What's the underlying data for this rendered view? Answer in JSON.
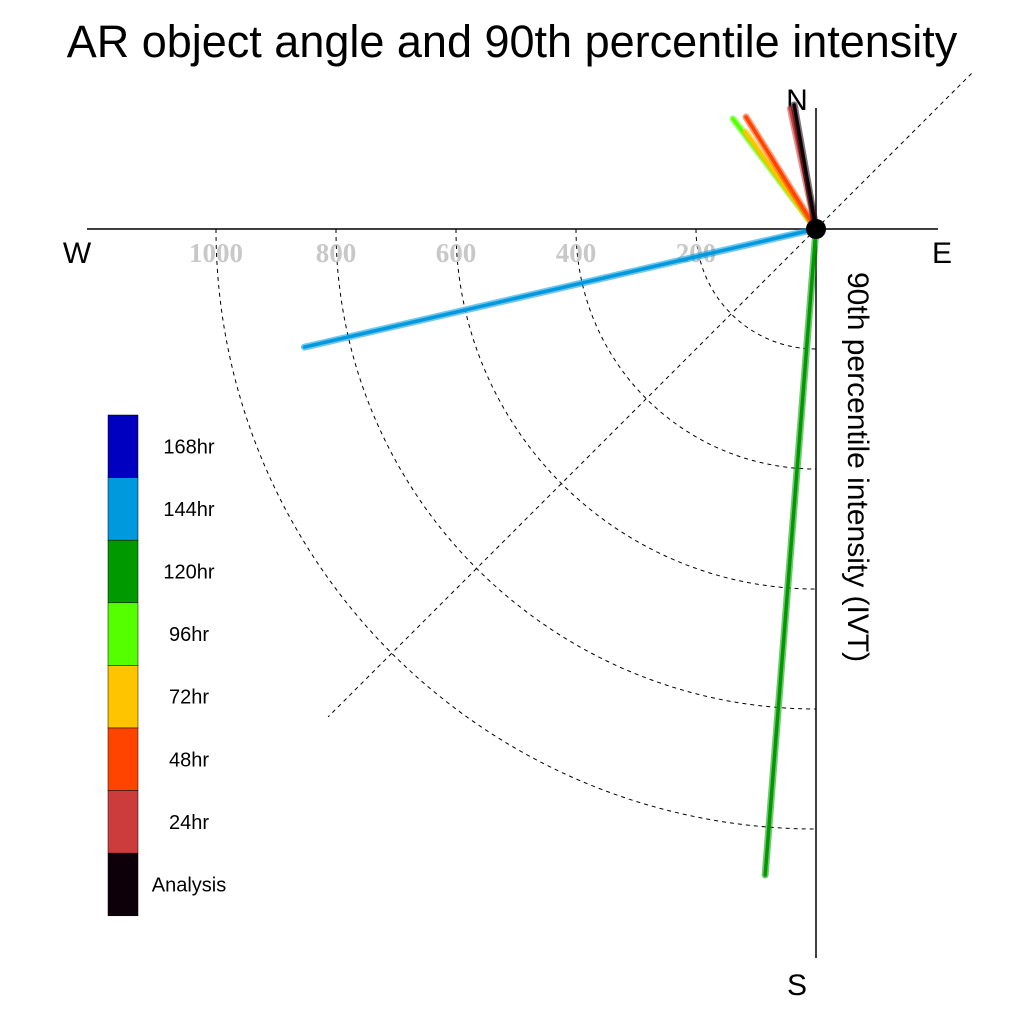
{
  "chart_data": {
    "type": "polar-vector",
    "title": "AR object angle and 90th percentile intensity",
    "ylabel": "90th percentile intensity (IVT)",
    "compass": {
      "north": "N",
      "south": "S",
      "east": "E",
      "west": "W"
    },
    "radial_ticks": [
      "200",
      "400",
      "600",
      "800",
      "1000"
    ],
    "radial_tick_values": [
      200,
      400,
      600,
      800,
      1000
    ],
    "radial_range": [
      0,
      1150
    ],
    "grid": true,
    "legend_position": "left",
    "series": [
      {
        "name": "Analysis",
        "color": "#0d0008",
        "angle_deg": -10,
        "value": 210
      },
      {
        "name": "24hr",
        "color": "#cc3c3c",
        "angle_deg": -12,
        "value": 205
      },
      {
        "name": "48hr",
        "color": "#ff4400",
        "angle_deg": -32,
        "value": 220
      },
      {
        "name": "72hr",
        "color": "#ffc400",
        "angle_deg": -36,
        "value": 200
      },
      {
        "name": "96hr",
        "color": "#55ff00",
        "angle_deg": -37,
        "value": 230
      },
      {
        "name": "120hr",
        "color": "#009900",
        "angle_deg": 184.5,
        "value": 1080
      },
      {
        "name": "144hr",
        "color": "#0099dd",
        "angle_deg": 257,
        "value": 875
      }
    ],
    "legend": [
      {
        "label": "168hr",
        "color": "#0000c0"
      },
      {
        "label": "144hr",
        "color": "#0099dd"
      },
      {
        "label": "120hr",
        "color": "#009900"
      },
      {
        "label": "96hr",
        "color": "#55ff00"
      },
      {
        "label": "72hr",
        "color": "#ffc400"
      },
      {
        "label": "48hr",
        "color": "#ff4400"
      },
      {
        "label": "24hr",
        "color": "#cc3c3c"
      },
      {
        "label": "Analysis",
        "color": "#0d0008"
      }
    ]
  }
}
